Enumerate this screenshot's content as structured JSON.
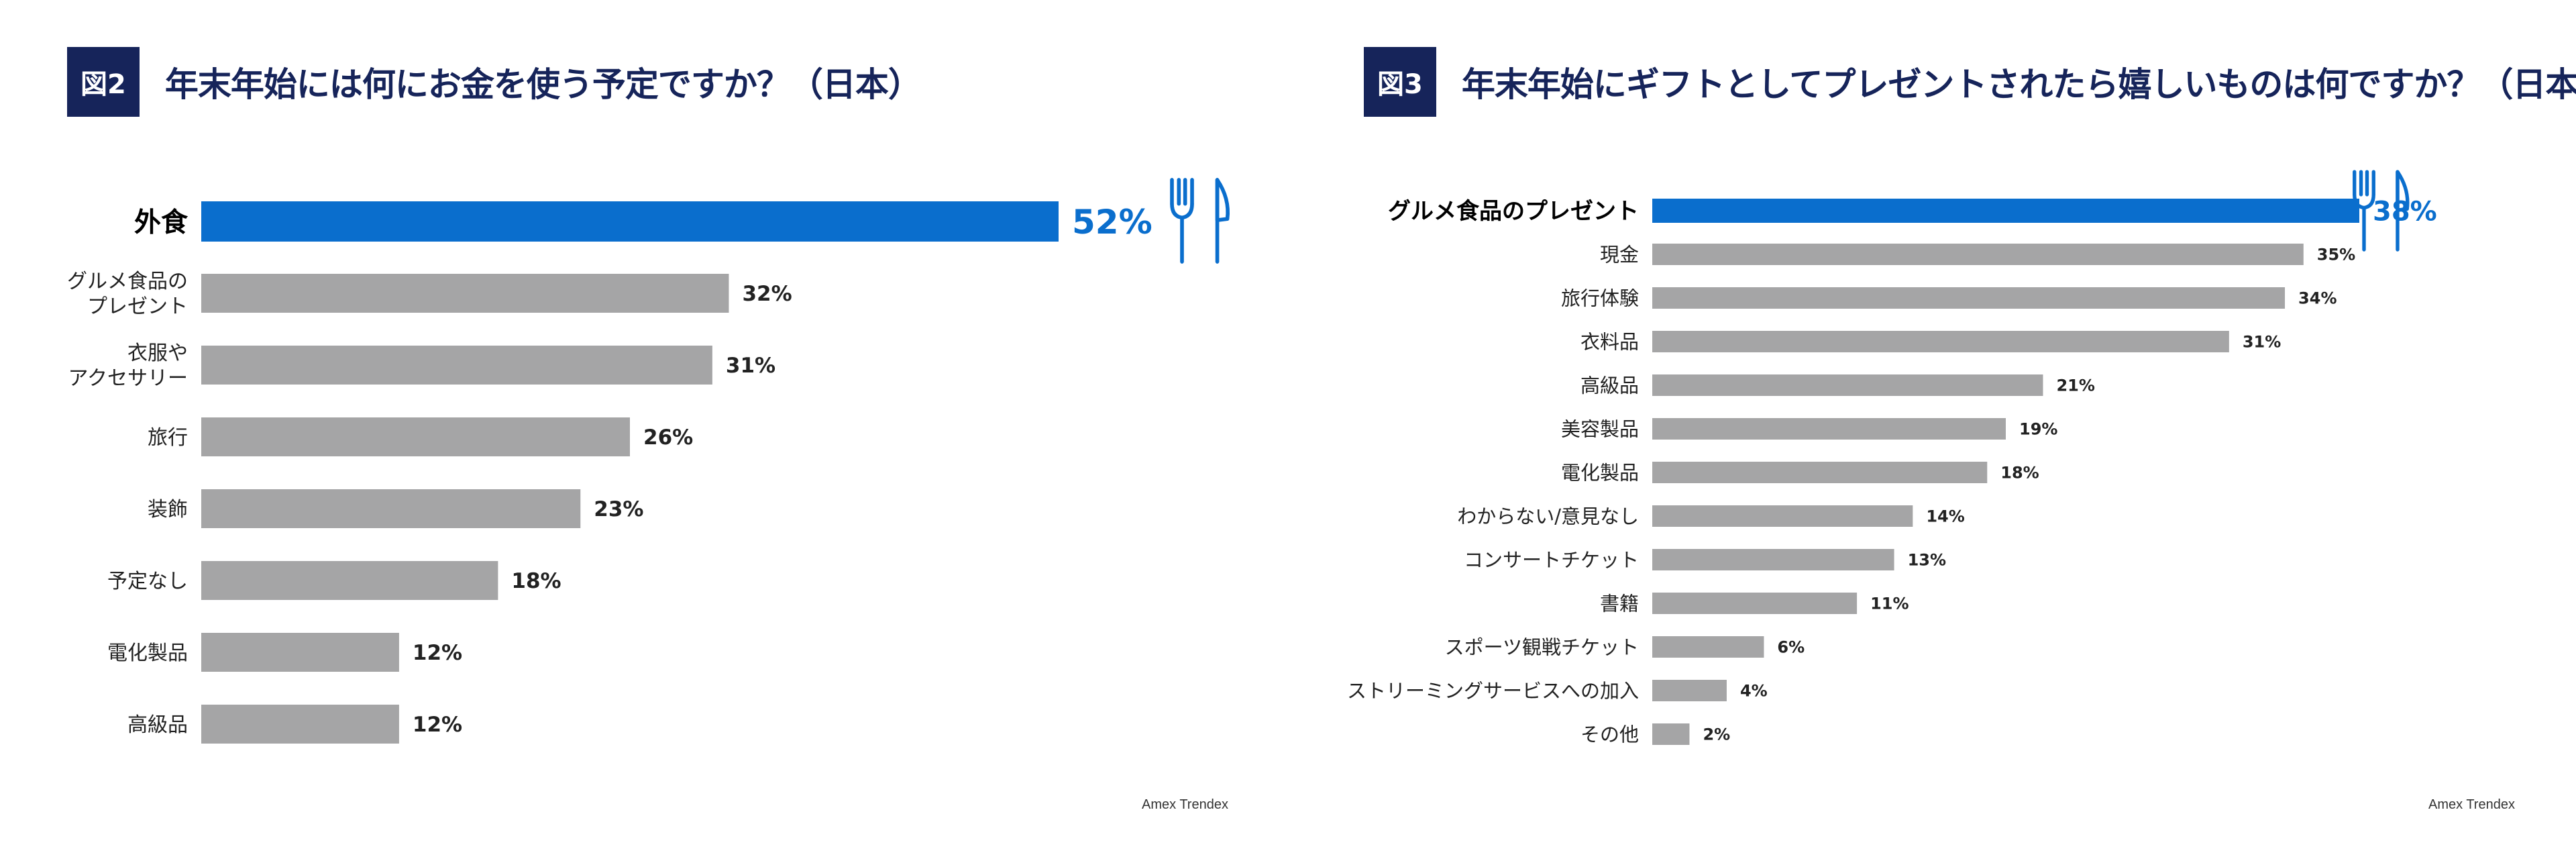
{
  "colors": {
    "highlight": "#0a6ecd",
    "bar": "#a5a5a6",
    "navy": "#16245a",
    "text": "#222222"
  },
  "figures": [
    {
      "badge": "図2",
      "title": "年末年始には何にお金を使う予定ですか？（日本）",
      "source": "Amex Trendex",
      "icon": "cutlery-icon"
    },
    {
      "badge": "図3",
      "title": "年末年始にギフトとしてプレゼントされたら嬉しいものは何ですか？（日本）",
      "source": "Amex Trendex",
      "icon": "cutlery-icon"
    }
  ],
  "chart_data": [
    {
      "type": "bar",
      "orientation": "horizontal",
      "title": "年末年始には何にお金を使う予定ですか？（日本）",
      "categories": [
        "外食",
        "グルメ食品の\nプレゼント",
        "衣服や\nアクセサリー",
        "旅行",
        "装飾",
        "予定なし",
        "電化製品",
        "高級品"
      ],
      "values": [
        52,
        32,
        31,
        26,
        23,
        18,
        12,
        12
      ],
      "value_labels": [
        "52%",
        "32%",
        "31%",
        "26%",
        "23%",
        "18%",
        "12%",
        "12%"
      ],
      "highlight_index": 0,
      "unit": "%",
      "xlim": [
        0,
        52
      ]
    },
    {
      "type": "bar",
      "orientation": "horizontal",
      "title": "年末年始にギフトとしてプレゼントされたら嬉しいものは何ですか？（日本）",
      "categories": [
        "グルメ食品のプレゼント",
        "現金",
        "旅行体験",
        "衣料品",
        "高級品",
        "美容製品",
        "電化製品",
        "わからない/意見なし",
        "コンサートチケット",
        "書籍",
        "スポーツ観戦チケット",
        "ストリーミングサービスへの加入",
        "その他"
      ],
      "values": [
        38,
        35,
        34,
        31,
        21,
        19,
        18,
        14,
        13,
        11,
        6,
        4,
        2
      ],
      "value_labels": [
        "38%",
        "35%",
        "34%",
        "31%",
        "21%",
        "19%",
        "18%",
        "14%",
        "13%",
        "11%",
        "6%",
        "4%",
        "2%"
      ],
      "highlight_index": 0,
      "unit": "%",
      "xlim": [
        0,
        38
      ]
    }
  ]
}
